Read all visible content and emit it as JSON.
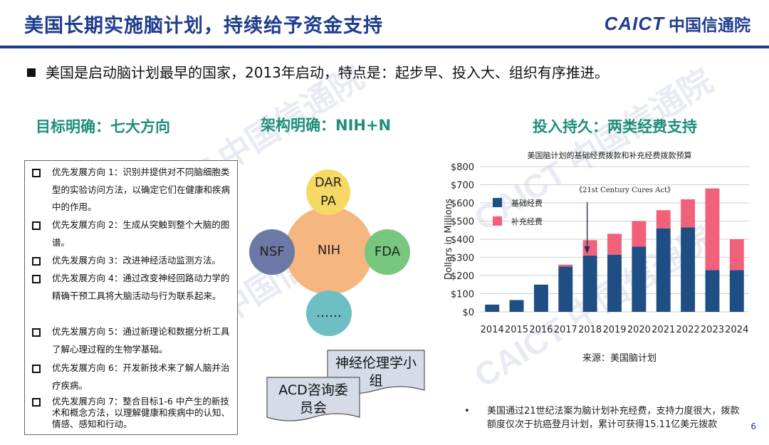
{
  "slide": {
    "title": "美国长期实施脑计划，持续给予资金支持",
    "logo_en": "CAICT",
    "logo_cn": "中国信通院",
    "intro": "美国是启动脑计划最早的国家，2013年启动，特点是：起步早、投入大、组织有序推进。",
    "page_number": "6",
    "accent_color": "#1f3d8f",
    "heading_color": "#1f8f7a"
  },
  "watermark": {
    "text_en": "CAICT",
    "text_cn": "中国信通院"
  },
  "section_goals": {
    "heading": "目标明确：七大方向",
    "items": [
      "优先发展方向 1：识别并提供对不同脑细胞类型的实验访问方法，以确定它们在健康和疾病中的作用。",
      "优先发展方向 2：生成从突触到整个大脑的图谱。",
      "优先发展方向 3：改进神经活动监测方法。",
      "优先发展方向 4：通过改变神经回路动力学的精确干预工具将大脑活动与行为联系起来。",
      "优先发展方向 5：通过新理论和数据分析工具了解心理过程的生物学基础。",
      "优先发展方向 6：开发新技术来了解人脑并治疗疾病。",
      "优先发展方向 7：整合目标1-6 中产生的新技术和概念方法，以理解健康和疾病中的认知、情感、感知和行动。"
    ]
  },
  "section_structure": {
    "heading": "架构明确：NIH+N",
    "center": "NIH",
    "top": "DAR PA",
    "left": "NSF",
    "right": "FDA",
    "bottom": "……",
    "ethics_group": "神经伦理学小组",
    "acd": "ACD咨询委员会"
  },
  "section_funding": {
    "heading": "投入持久：两类经费支持",
    "source": "来源：美国脑计划",
    "note": "美国通过21世纪法案为脑计划补充经费，支持力度很大，拨款额度仅次于抗癌登月计划，累计可获得15.11亿美元拨款"
  },
  "chart_data": {
    "type": "bar",
    "stacked": true,
    "title": "美国脑计划的基础经费拨款和补充经费拨款预算",
    "ylabel": "Dollars in Millions",
    "xlabel": "",
    "categories": [
      "2014",
      "2015",
      "2016",
      "2017",
      "2018",
      "2019",
      "2020",
      "2021",
      "2022",
      "2023",
      "2024"
    ],
    "series": [
      {
        "name": "基础经费",
        "color": "#1f4e85",
        "values": [
          40,
          65,
          150,
          250,
          310,
          315,
          360,
          460,
          465,
          230,
          230
        ]
      },
      {
        "name": "补充经费",
        "color": "#f2617a",
        "values": [
          0,
          0,
          0,
          10,
          85,
          115,
          140,
          100,
          155,
          450,
          170
        ]
      }
    ],
    "ylim": [
      0,
      800
    ],
    "yticks": [
      "$0",
      "$100",
      "$200",
      "$300",
      "$400",
      "$500",
      "$600",
      "$700",
      "$800"
    ],
    "grid": true,
    "legend_position": "top-left",
    "annotation": {
      "text": "《21st Century Cures Act》",
      "category": "2018"
    }
  }
}
